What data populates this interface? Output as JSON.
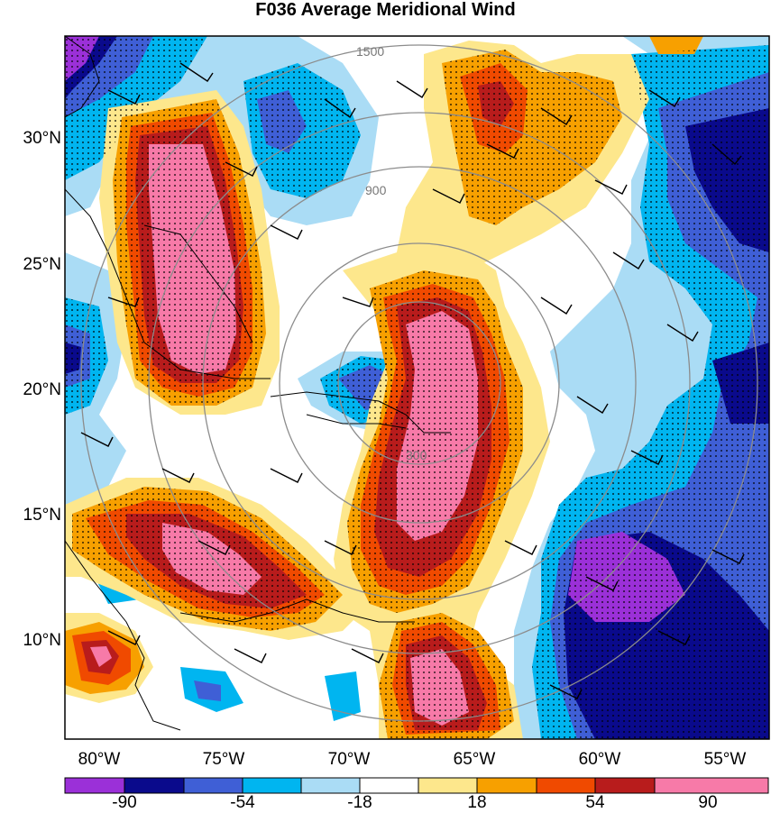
{
  "title": "F036 Average Meridional Wind",
  "lat_labels": [
    "30°N",
    "25°N",
    "20°N",
    "15°N",
    "10°N"
  ],
  "lon_labels": [
    "80°W",
    "75°W",
    "70°W",
    "65°W",
    "60°W",
    "55°W"
  ],
  "range_ring_labels": [
    "300",
    "900",
    "1500"
  ],
  "colorbar": {
    "tick_labels": [
      "-90",
      "-54",
      "-18",
      "18",
      "54",
      "90"
    ],
    "colors": [
      "#9b30d8",
      "#0a0a8c",
      "#3f5fd6",
      "#00b5f0",
      "#aadcf5",
      "#ffffff",
      "#fde78c",
      "#f7a000",
      "#f04a00",
      "#b81c1c",
      "#f77aa8"
    ]
  },
  "palette": {
    "strong_north": "#f77aa8",
    "north_3": "#b81c1c",
    "north_2": "#f04a00",
    "north_1": "#f7a000",
    "north_0": "#fde78c",
    "south_0": "#aadcf5",
    "south_1": "#00b5f0",
    "south_2": "#3f5fd6",
    "south_3": "#0a0a8c",
    "strong_south": "#9b30d8"
  }
}
